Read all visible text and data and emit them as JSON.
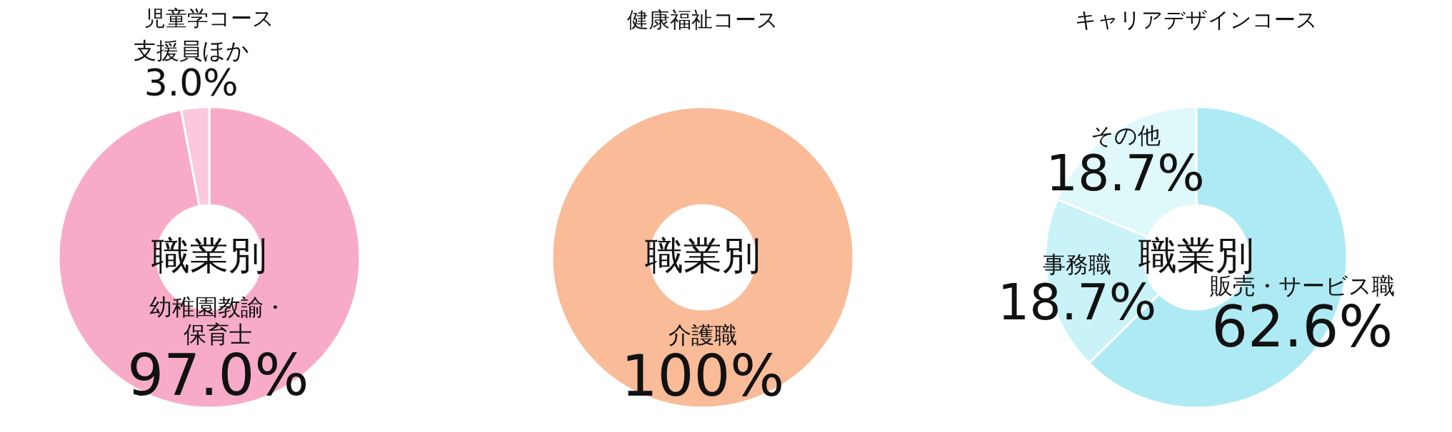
{
  "chart_data": [
    {
      "type": "donut",
      "title": "児童学コース",
      "categories": [
        "幼稚園教諭・保育士",
        "支援員ほか"
      ],
      "values": [
        97.0,
        3.0
      ],
      "colors": [
        "#f7abc8",
        "#fbc8dd"
      ],
      "value_labels": [
        "97.0%",
        "3.0%"
      ],
      "annotations": [
        "職業別"
      ]
    },
    {
      "type": "donut",
      "title": "健康福祉コース",
      "categories": [
        "介護職"
      ],
      "values": [
        100
      ],
      "colors": [
        "#f9bb98"
      ],
      "value_labels": [
        "100%"
      ],
      "annotations": [
        "職業別"
      ]
    },
    {
      "type": "donut",
      "title": "キャリアデザインコース",
      "categories": [
        "販売・サービス職",
        "事務職",
        "その他"
      ],
      "values": [
        62.6,
        18.7,
        18.7
      ],
      "colors": [
        "#aeeaf4",
        "#c9f3f8",
        "#dff9fb"
      ],
      "value_labels": [
        "62.6%",
        "18.7%",
        "18.7%"
      ],
      "annotations": [
        "職業別"
      ]
    }
  ]
}
